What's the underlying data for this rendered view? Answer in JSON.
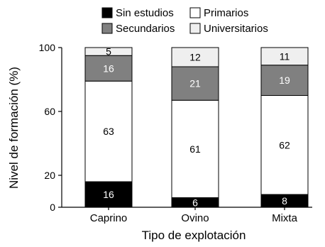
{
  "chart_data": {
    "type": "bar",
    "stacked": true,
    "categories": [
      "Caprino",
      "Ovino",
      "Mixta"
    ],
    "series": [
      {
        "name": "Sin estudios",
        "values": [
          16,
          6,
          8
        ],
        "color": "#000000",
        "label_color": "#ffffff"
      },
      {
        "name": "Primarios",
        "values": [
          63,
          61,
          62
        ],
        "color": "#ffffff",
        "label_color": "#000000"
      },
      {
        "name": "Secundarios",
        "values": [
          16,
          21,
          19
        ],
        "color": "#808080",
        "label_color": "#ffffff"
      },
      {
        "name": "Universitarios",
        "values": [
          5,
          12,
          11
        ],
        "color": "#efefef",
        "label_color": "#000000"
      }
    ],
    "xlabel": "Tipo de explotación",
    "ylabel": "Nivel de formación (%)",
    "ylim": [
      0,
      100
    ],
    "yticks": [
      0,
      20,
      60,
      100
    ],
    "grid": false,
    "legend_position": "top"
  }
}
